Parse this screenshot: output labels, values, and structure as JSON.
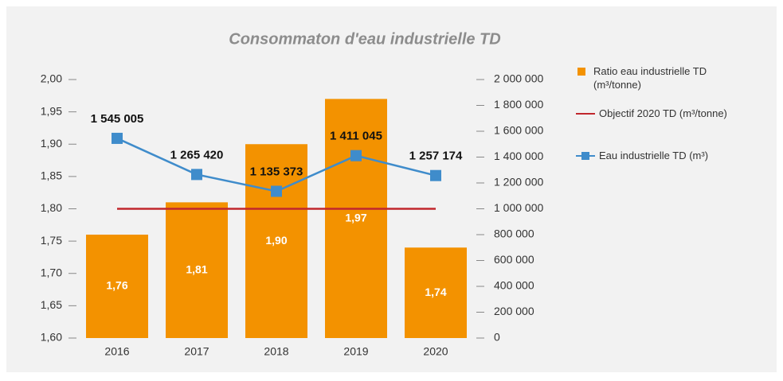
{
  "chart_data": {
    "type": "bar",
    "title": "Consommaton d'eau industrielle TD",
    "categories": [
      "2016",
      "2017",
      "2018",
      "2019",
      "2020"
    ],
    "series": [
      {
        "name": "Ratio eau industrielle TD (m³/tonne)",
        "type": "bar",
        "color": "#f39200",
        "values": [
          1.76,
          1.81,
          1.9,
          1.97,
          1.74
        ],
        "value_labels": [
          "1,76",
          "1,81",
          "1,90",
          "1,97",
          "1,74"
        ]
      },
      {
        "name": "Objectif 2020 TD (m³/tonne)",
        "type": "line",
        "color": "#c1272d",
        "values": [
          1.8,
          1.8,
          1.8,
          1.8,
          1.8
        ]
      },
      {
        "name": "Eau industrielle TD (m³)",
        "type": "line",
        "axis": "y2",
        "color": "#3f8ccb",
        "marker": "square",
        "values": [
          1545005,
          1265420,
          1135373,
          1411045,
          1257174
        ],
        "value_labels": [
          "1 545 005",
          "1 265 420",
          "1 135 373",
          "1 411 045",
          "1 257 174"
        ]
      }
    ],
    "ylim": [
      1.6,
      2.0
    ],
    "yticks": [
      {
        "value": 1.6,
        "label": "1,60"
      },
      {
        "value": 1.65,
        "label": "1,65"
      },
      {
        "value": 1.7,
        "label": "1,70"
      },
      {
        "value": 1.75,
        "label": "1,75"
      },
      {
        "value": 1.8,
        "label": "1,80"
      },
      {
        "value": 1.85,
        "label": "1,85"
      },
      {
        "value": 1.9,
        "label": "1,90"
      },
      {
        "value": 1.95,
        "label": "1,95"
      },
      {
        "value": 2.0,
        "label": "2,00"
      }
    ],
    "y2lim": [
      0,
      2000000
    ],
    "y2ticks": [
      0,
      {
        "value": 200000,
        "label": "200 000"
      },
      {
        "value": 400000,
        "label": "400 000"
      },
      {
        "value": 600000,
        "label": "600 000"
      },
      {
        "value": 800000,
        "label": "800 000"
      },
      {
        "value": 1000000,
        "label": "1 000 000"
      },
      {
        "value": 1200000,
        "label": "1 200 000"
      },
      {
        "value": 1400000,
        "label": "1 400 000"
      },
      {
        "value": 1600000,
        "label": "1 600 000"
      },
      {
        "value": 1800000,
        "label": "1 800 000"
      },
      {
        "value": 2000000,
        "label": "2 000 000"
      }
    ]
  }
}
